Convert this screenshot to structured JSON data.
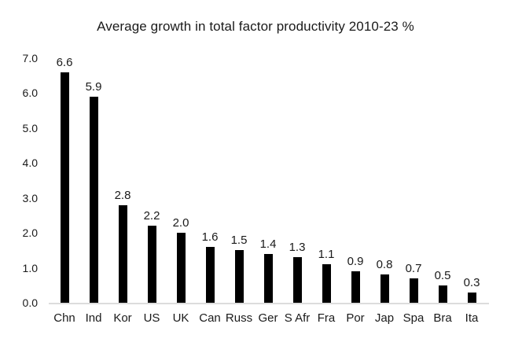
{
  "chart_data": {
    "type": "bar",
    "title": "Average growth in total factor productivity 2010-23 %",
    "categories": [
      "Chn",
      "Ind",
      "Kor",
      "US",
      "UK",
      "Can",
      "Russ",
      "Ger",
      "S Afr",
      "Fra",
      "Por",
      "Jap",
      "Spa",
      "Bra",
      "Ita"
    ],
    "values": [
      6.6,
      5.9,
      2.8,
      2.2,
      2.0,
      1.6,
      1.5,
      1.4,
      1.3,
      1.1,
      0.9,
      0.8,
      0.7,
      0.5,
      0.3
    ],
    "value_labels": [
      "6.6",
      "5.9",
      "2.8",
      "2.2",
      "2.0",
      "1.6",
      "1.5",
      "1.4",
      "1.3",
      "1.1",
      "0.9",
      "0.8",
      "0.7",
      "0.5",
      "0.3"
    ],
    "y_ticks": [
      "7.0",
      "6.0",
      "5.0",
      "4.0",
      "3.0",
      "2.0",
      "1.0",
      "0.0"
    ],
    "ylim": [
      0,
      7
    ],
    "xlabel": "",
    "ylabel": "",
    "grid": false,
    "legend": false,
    "bar_color": "#000000",
    "axis_line_color": "#dcdcdc",
    "text_color": "#1a1a1a",
    "background_color": "#ffffff"
  }
}
